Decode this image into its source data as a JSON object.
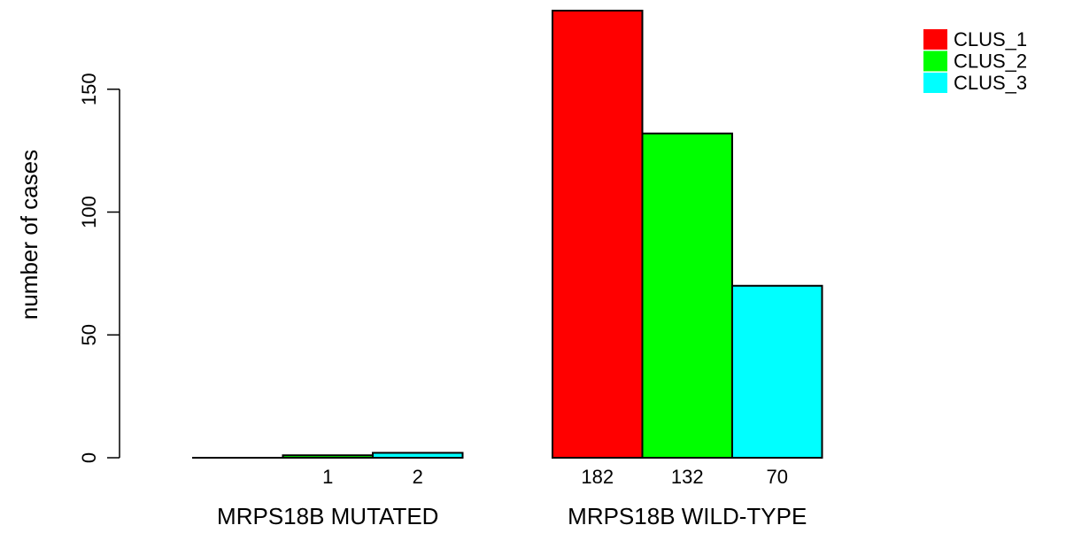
{
  "chart_data": {
    "type": "bar",
    "title": "",
    "xlabel": "",
    "ylabel": "number of cases",
    "ylim": [
      0,
      182
    ],
    "yticks": [
      0,
      50,
      100,
      150
    ],
    "grid": false,
    "legend_position": "top-right",
    "groups": [
      "MRPS18B MUTATED",
      "MRPS18B WILD-TYPE"
    ],
    "series": [
      {
        "name": "CLUS_1",
        "color": "#FF0000",
        "values": [
          0,
          182
        ]
      },
      {
        "name": "CLUS_2",
        "color": "#00FF00",
        "values": [
          1,
          132
        ]
      },
      {
        "name": "CLUS_3",
        "color": "#00FFFF",
        "values": [
          2,
          70
        ]
      }
    ],
    "count_labels": [
      [
        "",
        "1",
        "2"
      ],
      [
        "182",
        "132",
        "70"
      ]
    ]
  }
}
